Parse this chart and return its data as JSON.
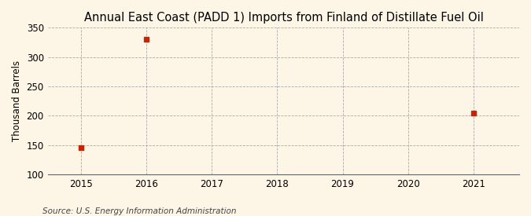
{
  "title": "Annual East Coast (PADD 1) Imports from Finland of Distillate Fuel Oil",
  "ylabel": "Thousand Barrels",
  "source": "Source: U.S. Energy Information Administration",
  "xlim": [
    2014.5,
    2021.7
  ],
  "ylim": [
    100,
    350
  ],
  "yticks": [
    100,
    150,
    200,
    250,
    300,
    350
  ],
  "xticks": [
    2015,
    2016,
    2017,
    2018,
    2019,
    2020,
    2021
  ],
  "data_x": [
    2015,
    2016,
    2021
  ],
  "data_y": [
    146,
    331,
    204
  ],
  "marker_color": "#cc2200",
  "marker_size": 4,
  "background_color": "#fdf5e6",
  "grid_color": "#aaaaaa",
  "title_fontsize": 10.5,
  "label_fontsize": 8.5,
  "tick_fontsize": 8.5,
  "source_fontsize": 7.5
}
